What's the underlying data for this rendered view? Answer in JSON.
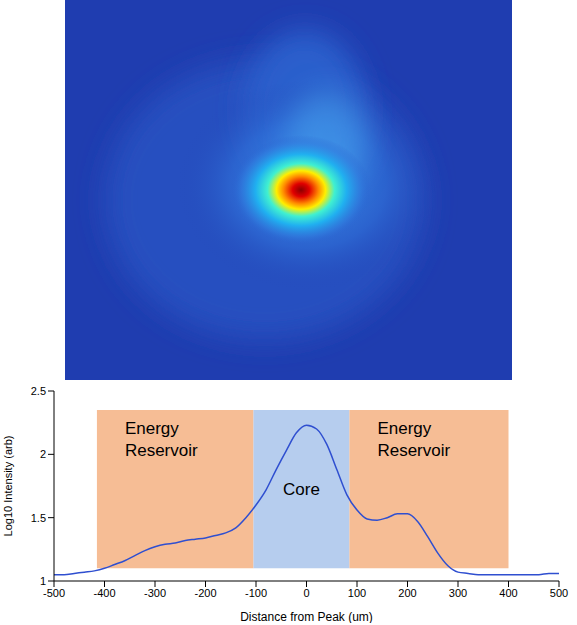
{
  "chart_data": {
    "type": "line",
    "xlabel": "Distance from Peak (um)",
    "ylabel": "Log10 Intensity (arb)",
    "x": [
      -500,
      -480,
      -460,
      -440,
      -420,
      -400,
      -380,
      -360,
      -340,
      -320,
      -300,
      -280,
      -260,
      -240,
      -220,
      -200,
      -180,
      -160,
      -140,
      -120,
      -100,
      -80,
      -60,
      -40,
      -20,
      0,
      20,
      40,
      60,
      80,
      100,
      120,
      140,
      160,
      180,
      200,
      220,
      240,
      260,
      280,
      300,
      320,
      340,
      360,
      380,
      400,
      420,
      440,
      460,
      480,
      500
    ],
    "values": [
      1.05,
      1.05,
      1.06,
      1.07,
      1.08,
      1.1,
      1.13,
      1.16,
      1.2,
      1.24,
      1.27,
      1.29,
      1.3,
      1.32,
      1.33,
      1.34,
      1.36,
      1.38,
      1.42,
      1.5,
      1.6,
      1.72,
      1.88,
      2.03,
      2.17,
      2.23,
      2.2,
      2.08,
      1.88,
      1.68,
      1.56,
      1.49,
      1.48,
      1.5,
      1.53,
      1.53,
      1.47,
      1.35,
      1.22,
      1.12,
      1.07,
      1.06,
      1.05,
      1.05,
      1.05,
      1.05,
      1.05,
      1.05,
      1.05,
      1.06,
      1.06
    ],
    "color": "#2f4fd0",
    "xlim": [
      -500,
      500
    ],
    "xticks": [
      -500,
      -400,
      -300,
      -200,
      -100,
      0,
      100,
      200,
      300,
      400,
      500
    ],
    "ylim": [
      1,
      2.5
    ],
    "yticks": [
      1,
      1.5,
      2,
      2.5
    ],
    "annotations": [
      {
        "text": "Energy Reservoir",
        "x": [
          -415,
          -105
        ],
        "y": [
          1.1,
          2.35
        ],
        "color": "#f4b183"
      },
      {
        "text": "Core",
        "x": [
          -105,
          85
        ],
        "y": [
          1.1,
          2.35
        ],
        "color": "#a9c4eb"
      },
      {
        "text": "Energy Reservoir",
        "x": [
          85,
          400
        ],
        "y": [
          1.1,
          2.35
        ],
        "color": "#f4b183"
      }
    ]
  }
}
